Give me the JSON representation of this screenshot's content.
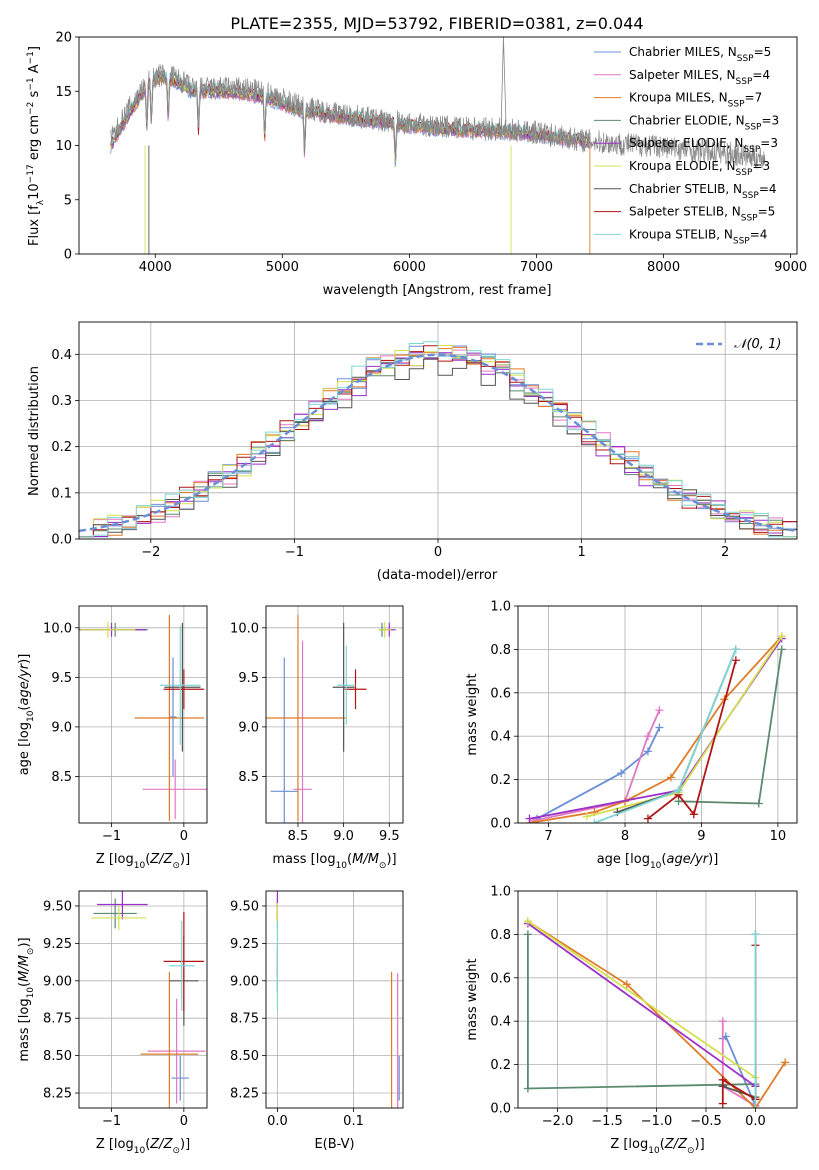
{
  "figure_title": "PLATE=2355, MJD=53792, FIBERID=0381, z=0.044",
  "colors": {
    "Chabrier MILES": "#6b8fd6",
    "Salpeter MILES": "#e377c2",
    "Kroupa MILES": "#e07b27",
    "Chabrier ELODIE": "#5c8a6e",
    "Salpeter ELODIE": "#9b30c9",
    "Kroupa ELODIE": "#d4e04f",
    "Chabrier STELIB": "#555555",
    "Salpeter STELIB": "#b01515",
    "Kroupa STELIB": "#7fd6d6"
  },
  "chart_data": [
    {
      "id": "spectrum",
      "type": "line",
      "title": "PLATE=2355, MJD=53792, FIBERID=0381, z=0.044",
      "xlabel": "wavelength [Angstrom, rest frame]",
      "ylabel": "Flux [f_λ 10^-17 erg cm^-2 s^-1 A^-1]",
      "xlim": [
        3400,
        9050
      ],
      "ylim": [
        0,
        20
      ],
      "xticks": [
        4000,
        5000,
        6000,
        7000,
        8000,
        9000
      ],
      "yticks": [
        0,
        5,
        10,
        15,
        20
      ],
      "legend_position": "top-right",
      "legend": [
        {
          "label": "Chabrier MILES, N",
          "sub": "SSP",
          "suffix": "=5"
        },
        {
          "label": "Salpeter MILES, N",
          "sub": "SSP",
          "suffix": "=4"
        },
        {
          "label": "Kroupa MILES, N",
          "sub": "SSP",
          "suffix": "=7"
        },
        {
          "label": "Chabrier ELODIE, N",
          "sub": "SSP",
          "suffix": "=3"
        },
        {
          "label": "Salpeter ELODIE, N",
          "sub": "SSP",
          "suffix": "=3"
        },
        {
          "label": "Kroupa ELODIE, N",
          "sub": "SSP",
          "suffix": "=3"
        },
        {
          "label": "Chabrier STELIB, N",
          "sub": "SSP",
          "suffix": "=4"
        },
        {
          "label": "Salpeter STELIB, N",
          "sub": "SSP",
          "suffix": "=5"
        },
        {
          "label": "Kroupa STELIB, N",
          "sub": "SSP",
          "suffix": "=4"
        }
      ],
      "data_envelope": {
        "x": [
          3650,
          3800,
          3950,
          4050,
          4150,
          4300,
          4500,
          4700,
          4900,
          5100,
          5300,
          5500,
          5800,
          6100,
          6400,
          6700,
          7000,
          7300,
          7600,
          7900,
          8200,
          8500,
          8800
        ],
        "y": [
          10.5,
          13.5,
          16.0,
          16.5,
          16.3,
          15.2,
          15.3,
          15.2,
          14.8,
          13.8,
          13.2,
          12.8,
          12.3,
          11.9,
          11.6,
          11.5,
          11.2,
          10.6,
          10.2,
          10.0,
          9.6,
          9.3,
          8.8
        ]
      },
      "model_envelope": {
        "x": [
          3650,
          3800,
          3950,
          4050,
          4150,
          4300,
          4500,
          4700,
          4900,
          5100,
          5300,
          5500,
          5800,
          6100,
          6400,
          6700,
          7000,
          7300,
          7420
        ],
        "y": [
          10.0,
          13.0,
          15.8,
          16.3,
          16.0,
          15.0,
          15.0,
          14.8,
          14.3,
          13.4,
          12.9,
          12.6,
          12.1,
          11.7,
          11.4,
          11.3,
          11.0,
          10.5,
          10.4
        ]
      }
    },
    {
      "id": "residuals",
      "type": "step",
      "xlabel": "(data-model)/error",
      "ylabel": "Normed distribution",
      "xlim": [
        -2.5,
        2.5
      ],
      "ylim": [
        0,
        0.47
      ],
      "xticks": [
        -2,
        -1,
        0,
        1,
        2
      ],
      "yticks": [
        0.0,
        0.1,
        0.2,
        0.3,
        0.4
      ],
      "legend_position": "top-right",
      "legend_label": "N(0,1)",
      "bin_edges_from": -2.5,
      "bin_width": 0.1,
      "bin_count": 50,
      "series_amplitude": [
        0.405,
        0.4,
        0.41,
        0.395,
        0.39,
        0.4,
        0.38,
        0.405,
        0.41
      ]
    },
    {
      "id": "age_vs_Z",
      "type": "errorbar",
      "xlabel": "Z [log10(Z/Z⊙)]",
      "ylabel": "age [log10(age/yr)]",
      "xlim": [
        -1.45,
        0.32
      ],
      "ylim": [
        8.03,
        10.22
      ],
      "xticks": [
        -1,
        0
      ],
      "yticks": [
        8.5,
        9.0,
        9.5,
        10.0
      ],
      "points": [
        {
          "series": "Chabrier MILES",
          "x": -0.15,
          "y": 9.1,
          "xerr": 0.05,
          "yerr": 0.6
        },
        {
          "series": "Salpeter MILES",
          "x": -0.12,
          "y": 8.37,
          "xerr": 0.45,
          "yerr": 0.3
        },
        {
          "series": "Kroupa MILES",
          "x": -0.2,
          "y": 9.09,
          "xerr": 0.48,
          "yerr": 1.04
        },
        {
          "series": "Chabrier ELODIE",
          "x": -0.95,
          "y": 9.98,
          "xerr": 0.45,
          "yerr": 0.07
        },
        {
          "series": "Salpeter ELODIE",
          "x": -1.0,
          "y": 9.98,
          "xerr": 0.48,
          "yerr": 0.07
        },
        {
          "series": "Kroupa ELODIE",
          "x": -1.05,
          "y": 9.98,
          "xerr": 0.38,
          "yerr": 0.08
        },
        {
          "series": "Chabrier STELIB",
          "x": -0.02,
          "y": 9.4,
          "xerr": 0.25,
          "yerr": 0.65
        },
        {
          "series": "Salpeter STELIB",
          "x": 0.0,
          "y": 9.38,
          "xerr": 0.28,
          "yerr": 0.2
        },
        {
          "series": "Kroupa STELIB",
          "x": -0.05,
          "y": 9.42,
          "xerr": 0.28,
          "yerr": 0.6
        }
      ]
    },
    {
      "id": "age_vs_mass",
      "type": "errorbar",
      "xlabel": "mass [log10(M/M⊙)]",
      "ylabel": "",
      "xlim": [
        8.15,
        9.65
      ],
      "ylim": [
        8.03,
        10.22
      ],
      "xticks": [
        8.5,
        9.0,
        9.5
      ],
      "yticks": [
        8.5,
        9.0,
        9.5,
        10.0
      ],
      "points": [
        {
          "series": "Chabrier MILES",
          "x": 8.35,
          "y": 8.35,
          "xerr": 0.15,
          "yerr": 1.35
        },
        {
          "series": "Salpeter MILES",
          "x": 8.55,
          "y": 8.37,
          "xerr": 0.1,
          "yerr": 1.5
        },
        {
          "series": "Kroupa MILES",
          "x": 8.5,
          "y": 9.09,
          "xerr": 0.52,
          "yerr": 1.04
        },
        {
          "series": "Chabrier ELODIE",
          "x": 9.42,
          "y": 9.98,
          "xerr": 0.03,
          "yerr": 0.07
        },
        {
          "series": "Salpeter ELODIE",
          "x": 9.5,
          "y": 9.98,
          "xerr": 0.07,
          "yerr": 0.07
        },
        {
          "series": "Kroupa ELODIE",
          "x": 9.45,
          "y": 9.98,
          "xerr": 0.07,
          "yerr": 0.08
        },
        {
          "series": "Chabrier STELIB",
          "x": 9.0,
          "y": 9.4,
          "xerr": 0.12,
          "yerr": 0.65
        },
        {
          "series": "Salpeter STELIB",
          "x": 9.13,
          "y": 9.38,
          "xerr": 0.12,
          "yerr": 0.2
        },
        {
          "series": "Kroupa STELIB",
          "x": 9.03,
          "y": 9.42,
          "xerr": 0.1,
          "yerr": 0.4
        }
      ]
    },
    {
      "id": "weight_vs_age",
      "type": "line",
      "xlabel": "age [log10(age/yr)]",
      "ylabel": "mass weight",
      "xlim": [
        6.6,
        10.25
      ],
      "ylim": [
        0,
        1
      ],
      "xticks": [
        7,
        8,
        9,
        10
      ],
      "yticks": [
        0.0,
        0.2,
        0.4,
        0.6,
        0.8,
        1.0
      ],
      "series": [
        {
          "name": "Chabrier MILES",
          "x": [
            6.85,
            7.95,
            8.3,
            8.45
          ],
          "y": [
            0.02,
            0.23,
            0.33,
            0.44
          ]
        },
        {
          "name": "Salpeter MILES",
          "x": [
            6.8,
            8.0,
            8.3,
            8.45
          ],
          "y": [
            0.01,
            0.1,
            0.4,
            0.52
          ]
        },
        {
          "name": "Kroupa MILES",
          "x": [
            6.75,
            7.6,
            8.0,
            8.6,
            9.3,
            10.05
          ],
          "y": [
            0.0,
            0.05,
            0.1,
            0.21,
            0.57,
            0.86
          ]
        },
        {
          "name": "Chabrier ELODIE",
          "x": [
            8.7,
            9.75,
            10.05
          ],
          "y": [
            0.1,
            0.09,
            0.8
          ]
        },
        {
          "name": "Salpeter ELODIE",
          "x": [
            6.75,
            8.7,
            10.05
          ],
          "y": [
            0.02,
            0.15,
            0.85
          ]
        },
        {
          "name": "Kroupa ELODIE",
          "x": [
            7.5,
            8.7,
            10.05
          ],
          "y": [
            0.03,
            0.14,
            0.86
          ]
        },
        {
          "name": "Chabrier STELIB",
          "x": [
            7.9,
            8.7,
            9.45
          ],
          "y": [
            0.05,
            0.15,
            0.8
          ]
        },
        {
          "name": "Salpeter STELIB",
          "x": [
            8.3,
            8.7,
            8.9,
            9.45
          ],
          "y": [
            0.02,
            0.13,
            0.04,
            0.75
          ]
        },
        {
          "name": "Kroupa STELIB",
          "x": [
            7.6,
            8.7,
            9.45
          ],
          "y": [
            0.0,
            0.15,
            0.8
          ]
        }
      ]
    },
    {
      "id": "mass_vs_Z",
      "type": "errorbar",
      "xlabel": "Z [log10(Z/Z⊙)]",
      "ylabel": "mass [log10(M/M⊙)]",
      "xlim": [
        -1.45,
        0.32
      ],
      "ylim": [
        8.15,
        9.6
      ],
      "xticks": [
        -1,
        0
      ],
      "yticks": [
        8.25,
        8.5,
        8.75,
        9.0,
        9.25,
        9.5
      ],
      "points": [
        {
          "series": "Chabrier MILES",
          "x": -0.05,
          "y": 8.35,
          "xerr": 0.12,
          "yerr": 0.15
        },
        {
          "series": "Salpeter MILES",
          "x": -0.1,
          "y": 8.53,
          "xerr": 0.4,
          "yerr": 0.35
        },
        {
          "series": "Kroupa MILES",
          "x": -0.2,
          "y": 8.51,
          "xerr": 0.4,
          "yerr": 0.55
        },
        {
          "series": "Chabrier ELODIE",
          "x": -0.95,
          "y": 9.45,
          "xerr": 0.3,
          "yerr": 0.1
        },
        {
          "series": "Salpeter ELODIE",
          "x": -0.85,
          "y": 9.51,
          "xerr": 0.35,
          "yerr": 0.1
        },
        {
          "series": "Kroupa ELODIE",
          "x": -0.9,
          "y": 9.42,
          "xerr": 0.38,
          "yerr": 0.08
        },
        {
          "series": "Chabrier STELIB",
          "x": 0.0,
          "y": 9.0,
          "xerr": 0.2,
          "yerr": 0.3
        },
        {
          "series": "Salpeter STELIB",
          "x": 0.0,
          "y": 9.13,
          "xerr": 0.28,
          "yerr": 0.33
        },
        {
          "series": "Kroupa STELIB",
          "x": -0.03,
          "y": 9.1,
          "xerr": 0.18,
          "yerr": 0.3
        }
      ]
    },
    {
      "id": "mass_vs_ebv",
      "type": "errorbar",
      "xlabel": "E(B-V)",
      "ylabel": "",
      "xlim": [
        -0.015,
        0.165
      ],
      "ylim": [
        8.15,
        9.6
      ],
      "xticks": [
        0.0,
        0.1
      ],
      "yticks": [
        8.25,
        8.5,
        8.75,
        9.0,
        9.25,
        9.5
      ],
      "points": [
        {
          "series": "Chabrier MILES",
          "x": 0.16,
          "y": 8.35,
          "xerr": 0.0,
          "yerr": 0.15
        },
        {
          "series": "Salpeter MILES",
          "x": 0.158,
          "y": 8.53,
          "xerr": 0.0,
          "yerr": 0.52
        },
        {
          "series": "Kroupa MILES",
          "x": 0.15,
          "y": 8.51,
          "xerr": 0.0,
          "yerr": 0.55
        },
        {
          "series": "Chabrier ELODIE",
          "x": 0.0,
          "y": 9.45,
          "xerr": 0.0,
          "yerr": 0.1
        },
        {
          "series": "Salpeter ELODIE",
          "x": 0.0,
          "y": 9.51,
          "xerr": 0.0,
          "yerr": 0.1
        },
        {
          "series": "Kroupa ELODIE",
          "x": 0.0,
          "y": 9.42,
          "xerr": 0.0,
          "yerr": 0.1
        },
        {
          "series": "Chabrier STELIB",
          "x": 0.0,
          "y": 9.0,
          "xerr": 0.0,
          "yerr": 0.08
        },
        {
          "series": "Salpeter STELIB",
          "x": 0.0,
          "y": 9.13,
          "xerr": 0.0,
          "yerr": 0.1
        },
        {
          "series": "Kroupa STELIB",
          "x": 0.0,
          "y": 9.1,
          "xerr": 0.0,
          "yerr": 0.3
        }
      ]
    },
    {
      "id": "weight_vs_Z",
      "type": "line",
      "xlabel": "Z [log10(Z/Z⊙)]",
      "ylabel": "mass weight",
      "xlim": [
        -2.4,
        0.42
      ],
      "ylim": [
        0,
        1
      ],
      "xticks": [
        -2.0,
        -1.5,
        -1.0,
        -0.5,
        0.0
      ],
      "yticks": [
        0.0,
        0.2,
        0.4,
        0.6,
        0.8,
        1.0
      ],
      "series": [
        {
          "name": "Chabrier MILES",
          "x": [
            -0.33,
            -0.3,
            0.0
          ],
          "y": [
            0.32,
            0.33,
            0.01
          ]
        },
        {
          "name": "Salpeter MILES",
          "x": [
            -0.33,
            -0.33,
            0.0
          ],
          "y": [
            0.4,
            0.1,
            0.01
          ]
        },
        {
          "name": "Kroupa MILES",
          "x": [
            -2.3,
            -1.3,
            0.0,
            0.3
          ],
          "y": [
            0.86,
            0.57,
            0.0,
            0.21
          ]
        },
        {
          "name": "Chabrier ELODIE",
          "x": [
            -2.3,
            -2.3,
            0.0,
            0.0
          ],
          "y": [
            0.8,
            0.09,
            0.11,
            0.1
          ]
        },
        {
          "name": "Salpeter ELODIE",
          "x": [
            -2.3,
            0.0
          ],
          "y": [
            0.85,
            0.1
          ]
        },
        {
          "name": "Kroupa ELODIE",
          "x": [
            -2.3,
            0.0
          ],
          "y": [
            0.86,
            0.14
          ]
        },
        {
          "name": "Chabrier STELIB",
          "x": [
            0.0,
            0.0,
            -0.33
          ],
          "y": [
            0.8,
            0.05,
            0.1
          ]
        },
        {
          "name": "Salpeter STELIB",
          "x": [
            -0.33,
            -0.33,
            0.0,
            0.0
          ],
          "y": [
            0.02,
            0.13,
            0.04,
            0.75
          ]
        },
        {
          "name": "Kroupa STELIB",
          "x": [
            0.0,
            0.0
          ],
          "y": [
            0.0,
            0.8
          ]
        }
      ]
    }
  ]
}
